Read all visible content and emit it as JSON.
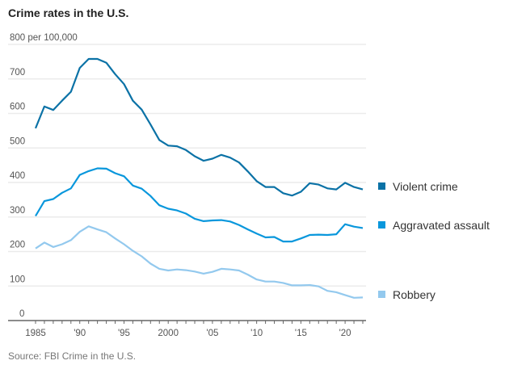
{
  "title": "Crime rates in the U.S.",
  "source": "Source: FBI Crime in the U.S.",
  "chart_data": {
    "type": "line",
    "title": "Crime rates in the U.S.",
    "ylabel": "per 100,000",
    "ylim": [
      0,
      800
    ],
    "yticks": [
      0,
      100,
      200,
      300,
      400,
      500,
      600,
      700,
      800
    ],
    "ytick_labels": [
      "0",
      "100",
      "200",
      "300",
      "400",
      "500",
      "600",
      "700",
      "800 per 100,000"
    ],
    "xlim": [
      1985,
      2022
    ],
    "xticks": [
      1985,
      1990,
      1995,
      2000,
      2005,
      2010,
      2015,
      2020
    ],
    "xtick_labels": [
      "1985",
      "'90",
      "'95",
      "2000",
      "'05",
      "'10",
      "'15",
      "'20"
    ],
    "grid": true,
    "legend": "right, at line ends",
    "x": [
      1985,
      1986,
      1987,
      1988,
      1989,
      1990,
      1991,
      1992,
      1993,
      1994,
      1995,
      1996,
      1997,
      1998,
      1999,
      2000,
      2001,
      2002,
      2003,
      2004,
      2005,
      2006,
      2007,
      2008,
      2009,
      2010,
      2011,
      2012,
      2013,
      2014,
      2015,
      2016,
      2017,
      2018,
      2019,
      2020,
      2021,
      2022
    ],
    "series": [
      {
        "name": "Violent crime",
        "color": "#0b72a6",
        "values": [
          557,
          620,
          610,
          637,
          663,
          732,
          758,
          758,
          747,
          714,
          685,
          637,
          611,
          568,
          523,
          507,
          505,
          494,
          476,
          463,
          469,
          480,
          472,
          458,
          432,
          404,
          387,
          387,
          369,
          362,
          373,
          398,
          394,
          383,
          380,
          399,
          387,
          380
        ]
      },
      {
        "name": "Aggravated assault",
        "color": "#0997dc",
        "values": [
          303,
          346,
          352,
          370,
          383,
          422,
          433,
          441,
          440,
          427,
          418,
          391,
          382,
          361,
          334,
          324,
          319,
          310,
          295,
          288,
          290,
          291,
          287,
          277,
          264,
          252,
          241,
          242,
          229,
          229,
          238,
          248,
          249,
          248,
          250,
          279,
          272,
          268
        ]
      },
      {
        "name": "Robbery",
        "color": "#93c9ee",
        "values": [
          209,
          226,
          213,
          221,
          233,
          257,
          273,
          264,
          256,
          238,
          221,
          202,
          186,
          165,
          150,
          145,
          148,
          146,
          142,
          136,
          141,
          150,
          148,
          145,
          133,
          119,
          113,
          113,
          109,
          102,
          102,
          103,
          99,
          86,
          82,
          74,
          66,
          67
        ]
      }
    ]
  }
}
